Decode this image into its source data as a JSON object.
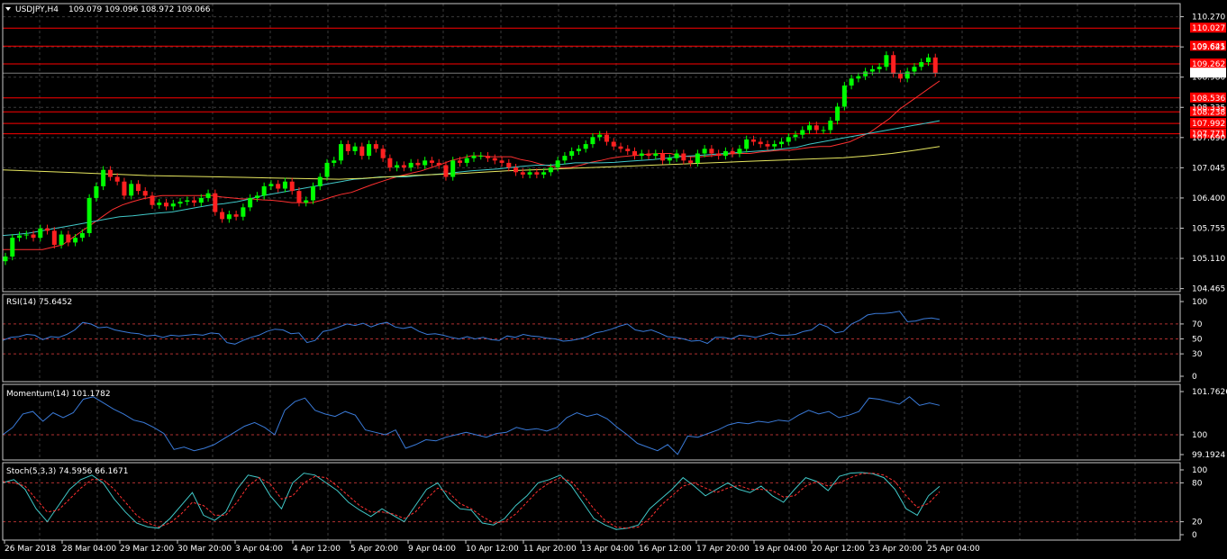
{
  "colors": {
    "background": "#000000",
    "grid": "#3a3a3a",
    "frame": "#c8c8c8",
    "text": "#ffffff",
    "bull": "#00ff00",
    "bear": "#ff2020",
    "hline": "#ff0000",
    "ma_fast": "#ff3030",
    "ma_mid": "#40c8c8",
    "ma_slow": "#e8e860",
    "indicator": "#3a7ad8",
    "signal": "#ff3030",
    "price_tag_bg": "#ffffff",
    "level_tag_bg": "#ff0000"
  },
  "header": {
    "symbol": "USDJPY,H4",
    "ohlc": "109.079 109.096 108.972 109.066",
    "collapse_icon": "triangle-down-icon"
  },
  "chart_data": [
    {
      "type": "candlestick",
      "panel": "main",
      "symbol": "USDJPY",
      "timeframe": "H4",
      "ylim": [
        104.4,
        110.55
      ],
      "y_ticks": [
        "110.270",
        "109.625",
        "108.980",
        "108.335",
        "107.690",
        "107.045",
        "106.400",
        "105.755",
        "105.110",
        "104.465"
      ],
      "x_tick_labels": [
        "26 Mar 2018",
        "28 Mar 04:00",
        "29 Mar 12:00",
        "30 Mar 20:00",
        "3 Apr 04:00",
        "4 Apr 12:00",
        "5 Apr 20:00",
        "9 Apr 04:00",
        "10 Apr 12:00",
        "11 Apr 20:00",
        "13 Apr 04:00",
        "16 Apr 12:00",
        "17 Apr 20:00",
        "19 Apr 04:00",
        "20 Apr 12:00",
        "23 Apr 20:00",
        "25 Apr 04:00"
      ],
      "current_price": "109.066",
      "horizontal_levels": [
        "110.027",
        "109.641",
        "109.262",
        "108.536",
        "108.238",
        "107.992",
        "107.771"
      ],
      "close": [
        105.15,
        105.55,
        105.6,
        105.62,
        105.55,
        105.75,
        105.7,
        105.4,
        105.62,
        105.45,
        105.55,
        105.65,
        106.4,
        106.65,
        107.0,
        106.85,
        106.75,
        106.45,
        106.7,
        106.55,
        106.45,
        106.25,
        106.3,
        106.22,
        106.28,
        106.32,
        106.35,
        106.3,
        106.4,
        106.5,
        106.1,
        105.95,
        106.05,
        106.0,
        106.2,
        106.4,
        106.45,
        106.65,
        106.7,
        106.6,
        106.75,
        106.55,
        106.3,
        106.35,
        106.65,
        106.85,
        107.15,
        107.2,
        107.55,
        107.4,
        107.5,
        107.3,
        107.55,
        107.45,
        107.25,
        107.05,
        107.1,
        107.05,
        107.15,
        107.1,
        107.2,
        107.15,
        107.1,
        106.85,
        107.2,
        107.15,
        107.25,
        107.3,
        107.3,
        107.25,
        107.2,
        107.15,
        107.05,
        106.95,
        106.9,
        106.95,
        106.9,
        106.95,
        107.05,
        107.2,
        107.3,
        107.4,
        107.45,
        107.55,
        107.7,
        107.75,
        107.6,
        107.5,
        107.45,
        107.4,
        107.3,
        107.35,
        107.3,
        107.35,
        107.2,
        107.25,
        107.35,
        107.2,
        107.15,
        107.35,
        107.45,
        107.35,
        107.3,
        107.4,
        107.35,
        107.45,
        107.65,
        107.6,
        107.55,
        107.5,
        107.55,
        107.6,
        107.7,
        107.75,
        107.85,
        107.95,
        107.85,
        107.85,
        108.05,
        108.35,
        108.8,
        108.95,
        109.0,
        109.1,
        109.15,
        109.2,
        109.45,
        109.05,
        108.95,
        109.1,
        109.2,
        109.3,
        109.4,
        109.066
      ],
      "series": [
        {
          "name": "MA (fast)",
          "color": "#ff3030",
          "values": [
            105.3,
            105.3,
            105.3,
            105.3,
            105.3,
            105.35,
            105.4,
            105.55,
            105.7,
            105.85,
            106.0,
            106.15,
            106.25,
            106.32,
            106.38,
            106.42,
            106.45,
            106.45,
            106.45,
            106.45,
            106.45,
            106.45,
            106.42,
            106.4,
            106.38,
            106.38,
            106.36,
            106.35,
            106.33,
            106.3,
            106.3,
            106.3,
            106.35,
            106.42,
            106.48,
            106.52,
            106.6,
            106.68,
            106.75,
            106.82,
            106.88,
            106.93,
            106.98,
            107.05,
            107.12,
            107.2,
            107.25,
            107.3,
            107.3,
            107.28,
            107.28,
            107.28,
            107.22,
            107.18,
            107.12,
            107.08,
            107.05,
            107.05,
            107.1,
            107.16,
            107.2,
            107.25,
            107.28,
            107.3,
            107.32,
            107.34,
            107.35,
            107.35,
            107.3,
            107.28,
            107.28,
            107.3,
            107.32,
            107.34,
            107.35,
            107.35,
            107.38,
            107.4,
            107.42,
            107.42,
            107.45,
            107.48,
            107.5,
            107.5,
            107.55,
            107.6,
            107.7,
            107.8,
            107.95,
            108.1,
            108.3,
            108.45,
            108.6,
            108.75,
            108.9
          ]
        },
        {
          "name": "MA (mid)",
          "color": "#40c8c8",
          "values": [
            105.6,
            105.62,
            105.65,
            105.7,
            105.75,
            105.8,
            105.85,
            105.9,
            105.95,
            106.0,
            106.02,
            106.05,
            106.08,
            106.1,
            106.15,
            106.2,
            106.25,
            106.28,
            106.32,
            106.38,
            106.45,
            106.5,
            106.55,
            106.6,
            106.65,
            106.7,
            106.75,
            106.8,
            106.82,
            106.85,
            106.85,
            106.85,
            106.88,
            106.9,
            106.92,
            106.95,
            106.98,
            107.0,
            107.02,
            107.05,
            107.08,
            107.1,
            107.1,
            107.12,
            107.15,
            107.15,
            107.15,
            107.16,
            107.18,
            107.2,
            107.22,
            107.25,
            107.28,
            107.3,
            107.32,
            107.34,
            107.36,
            107.38,
            107.4,
            107.42,
            107.45,
            107.48,
            107.55,
            107.6,
            107.65,
            107.7,
            107.75,
            107.8,
            107.85,
            107.9,
            107.95,
            108.0,
            108.05
          ]
        },
        {
          "name": "MA (slow)",
          "color": "#e8e860",
          "values": [
            107.0,
            106.98,
            106.96,
            106.94,
            106.92,
            106.9,
            106.88,
            106.87,
            106.86,
            106.85,
            106.84,
            106.83,
            106.82,
            106.81,
            106.8,
            106.82,
            106.85,
            106.88,
            106.9,
            106.92,
            106.95,
            106.98,
            107.0,
            107.02,
            107.04,
            107.06,
            107.08,
            107.1,
            107.12,
            107.14,
            107.16,
            107.18,
            107.2,
            107.22,
            107.24,
            107.26,
            107.3,
            107.35,
            107.42,
            107.5
          ]
        }
      ]
    },
    {
      "type": "line",
      "panel": "rsi",
      "title": "RSI(14) 75.6452",
      "ylim": [
        0,
        100
      ],
      "y_ticks": [
        "100",
        "70",
        "50",
        "30",
        "0"
      ],
      "levels": [
        70,
        50,
        30
      ],
      "series": [
        {
          "name": "RSI(14)",
          "color": "#3a7ad8",
          "values": [
            48,
            52,
            53,
            56,
            55,
            49,
            53,
            52,
            56,
            62,
            72,
            70,
            65,
            66,
            62,
            60,
            58,
            57,
            54,
            55,
            52,
            55,
            54,
            55,
            56,
            55,
            58,
            57,
            45,
            43,
            48,
            52,
            55,
            60,
            63,
            62,
            57,
            58,
            45,
            48,
            60,
            62,
            66,
            70,
            68,
            71,
            66,
            70,
            72,
            66,
            64,
            66,
            60,
            56,
            57,
            55,
            52,
            50,
            53,
            50,
            52,
            49,
            48,
            54,
            52,
            56,
            54,
            53,
            51,
            50,
            47,
            48,
            50,
            53,
            58,
            60,
            63,
            67,
            70,
            62,
            60,
            62,
            58,
            53,
            52,
            50,
            47,
            48,
            44,
            52,
            52,
            50,
            55,
            54,
            52,
            55,
            58,
            55,
            55,
            56,
            60,
            62,
            70,
            66,
            58,
            60,
            70,
            75,
            82,
            84,
            84,
            85,
            87,
            73,
            74,
            77,
            78,
            76
          ]
        }
      ]
    },
    {
      "type": "line",
      "panel": "momentum",
      "title": "Momentum(14) 101.1782",
      "ylim": [
        99.1924,
        101.7626
      ],
      "y_ticks": [
        "101.7626",
        "100",
        "99.1924"
      ],
      "levels": [
        100
      ],
      "series": [
        {
          "name": "Momentum(14)",
          "color": "#3a7ad8",
          "values": [
            100.0,
            100.3,
            100.85,
            100.95,
            100.55,
            100.9,
            100.7,
            100.9,
            101.45,
            101.55,
            101.3,
            101.05,
            100.85,
            100.6,
            100.5,
            100.3,
            100.05,
            99.4,
            99.5,
            99.35,
            99.45,
            99.6,
            99.85,
            100.1,
            100.35,
            100.5,
            100.3,
            100.0,
            101.0,
            101.35,
            101.5,
            101.0,
            100.85,
            100.75,
            100.95,
            100.8,
            100.2,
            100.1,
            100.0,
            100.2,
            99.45,
            99.6,
            99.8,
            99.75,
            99.9,
            100.0,
            100.1,
            100.0,
            99.9,
            100.05,
            100.1,
            100.3,
            100.2,
            100.25,
            100.15,
            100.3,
            100.7,
            100.9,
            100.75,
            100.85,
            100.65,
            100.3,
            100.0,
            99.65,
            99.5,
            99.35,
            99.6,
            99.2,
            99.95,
            99.9,
            100.05,
            100.2,
            100.4,
            100.5,
            100.45,
            100.55,
            100.5,
            100.6,
            100.55,
            100.8,
            101.0,
            100.85,
            100.95,
            100.7,
            100.8,
            100.95,
            101.5,
            101.45,
            101.35,
            101.25,
            101.55,
            101.2,
            101.3,
            101.2
          ]
        }
      ]
    },
    {
      "type": "line",
      "panel": "stochastic",
      "title": "Stoch(5,3,3) 74.5956 66.1671",
      "ylim": [
        0,
        100
      ],
      "y_ticks": [
        "100",
        "80",
        "20",
        "0"
      ],
      "levels": [
        80,
        20
      ],
      "series": [
        {
          "name": "%K",
          "color": "#40c8c8",
          "values": [
            80,
            85,
            70,
            40,
            20,
            45,
            70,
            85,
            92,
            80,
            55,
            35,
            18,
            12,
            10,
            25,
            45,
            65,
            30,
            22,
            35,
            70,
            92,
            88,
            60,
            40,
            80,
            95,
            92,
            80,
            68,
            50,
            38,
            28,
            40,
            30,
            20,
            45,
            70,
            80,
            55,
            40,
            38,
            18,
            15,
            25,
            45,
            60,
            80,
            85,
            92,
            75,
            50,
            25,
            15,
            8,
            10,
            15,
            40,
            55,
            70,
            88,
            75,
            60,
            70,
            80,
            70,
            65,
            75,
            60,
            50,
            70,
            88,
            82,
            68,
            90,
            95,
            96,
            94,
            88,
            70,
            40,
            30,
            60,
            74.6
          ]
        },
        {
          "name": "%D",
          "color": "#ff3030",
          "values": [
            82,
            80,
            75,
            55,
            35,
            38,
            55,
            72,
            85,
            85,
            70,
            50,
            30,
            18,
            12,
            18,
            32,
            50,
            45,
            30,
            30,
            50,
            75,
            88,
            78,
            55,
            60,
            80,
            90,
            88,
            75,
            60,
            45,
            35,
            35,
            32,
            25,
            35,
            55,
            72,
            65,
            48,
            40,
            28,
            18,
            20,
            32,
            50,
            68,
            80,
            88,
            82,
            62,
            40,
            22,
            12,
            10,
            12,
            25,
            45,
            60,
            75,
            80,
            72,
            65,
            72,
            76,
            70,
            70,
            68,
            58,
            60,
            75,
            82,
            75,
            80,
            88,
            94,
            95,
            92,
            82,
            60,
            42,
            48,
            66.2
          ]
        }
      ]
    }
  ]
}
